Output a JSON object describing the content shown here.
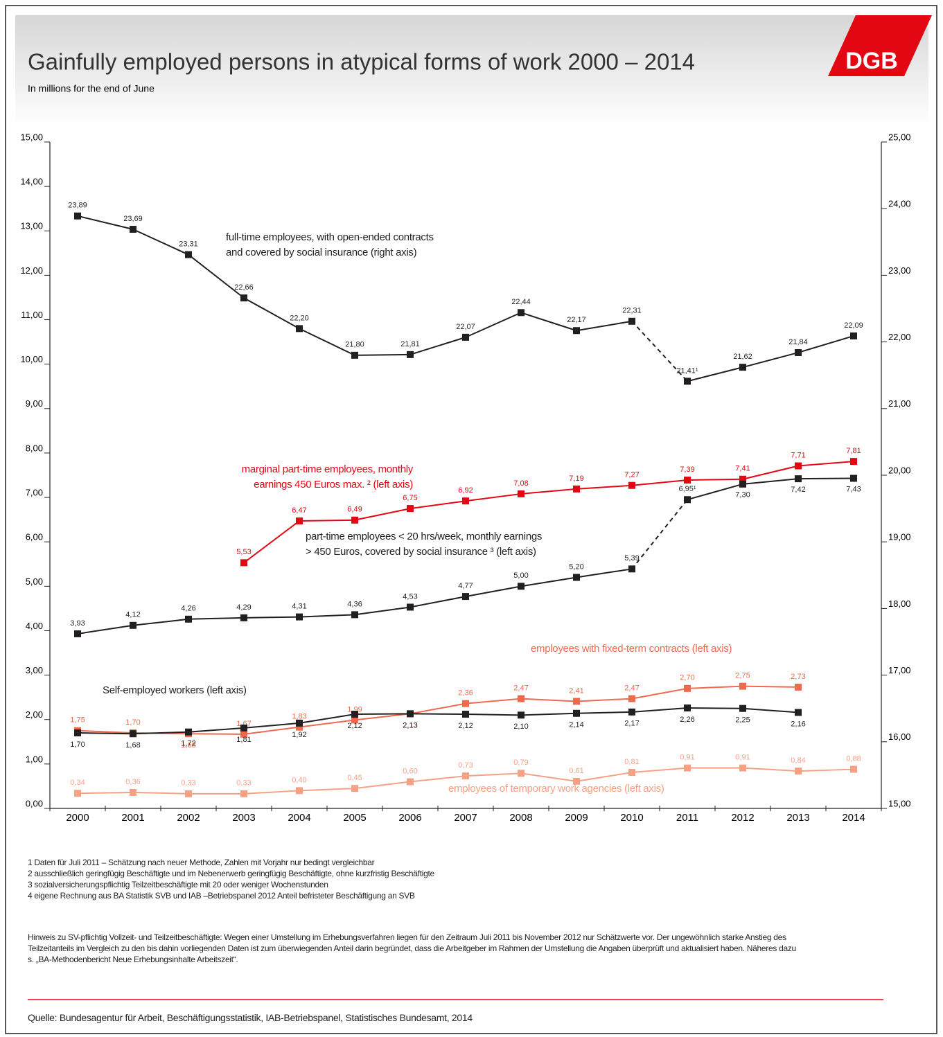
{
  "chart_data": {
    "type": "line",
    "title": "Gainfully employed persons in atypical forms of work 2000 – 2014",
    "subtitle": "In millions for the end of June",
    "categories": [
      "2000",
      "2001",
      "2002",
      "2003",
      "2004",
      "2005",
      "2006",
      "2007",
      "2008",
      "2009",
      "2010",
      "2011",
      "2012",
      "2013",
      "2014"
    ],
    "ylim": [
      0,
      15
    ],
    "yticks": [
      {
        "value": 0,
        "label": "0,00"
      },
      {
        "value": 1,
        "label": "1,00"
      },
      {
        "value": 2,
        "label": "2,00"
      },
      {
        "value": 3,
        "label": "3,00"
      },
      {
        "value": 4,
        "label": "4,00"
      },
      {
        "value": 5,
        "label": "5,00"
      },
      {
        "value": 6,
        "label": "6,00"
      },
      {
        "value": 7,
        "label": "7,00"
      },
      {
        "value": 8,
        "label": "8,00"
      },
      {
        "value": 9,
        "label": "9,00"
      },
      {
        "value": 10,
        "label": "10,00"
      },
      {
        "value": 11,
        "label": "11,00"
      },
      {
        "value": 12,
        "label": "12,00"
      },
      {
        "value": 13,
        "label": "13,00"
      },
      {
        "value": 14,
        "label": "14,00"
      },
      {
        "value": 15,
        "label": "15,00"
      }
    ],
    "y2lim": [
      15,
      25
    ],
    "y2ticks": [
      {
        "value": 15,
        "label": "15,00"
      },
      {
        "value": 16,
        "label": "16,00"
      },
      {
        "value": 17,
        "label": "17,00"
      },
      {
        "value": 18,
        "label": "18,00"
      },
      {
        "value": 19,
        "label": "19,00"
      },
      {
        "value": 20,
        "label": "20,00"
      },
      {
        "value": 21,
        "label": "21,00"
      },
      {
        "value": 22,
        "label": "22,00"
      },
      {
        "value": 23,
        "label": "23,00"
      },
      {
        "value": 24,
        "label": "24,00"
      },
      {
        "value": 25,
        "label": "25,00"
      }
    ],
    "grid": false,
    "series": [
      {
        "name": "full-time employees, with open-ended contracts\nand covered by social insurance (right axis)",
        "color": "#231f20",
        "axis": "y2",
        "dashed_to": "2011",
        "values": [
          23.89,
          23.69,
          23.31,
          22.66,
          22.2,
          21.8,
          21.81,
          22.07,
          22.44,
          22.17,
          22.31,
          21.41,
          21.62,
          21.84,
          22.09
        ],
        "value_labels": [
          "23,89",
          "23,69",
          "23,31",
          "22,66",
          "22,20",
          "21,80",
          "21,81",
          "22,07",
          "22,44",
          "22,17",
          "22,31",
          "21,41¹",
          "21,62",
          "21,84",
          "22,09"
        ]
      },
      {
        "name": "marginal part-time employees, monthly\nearnings 450 Euros max. ² (left axis)",
        "color": "#e30613",
        "values": [
          null,
          null,
          null,
          5.53,
          6.47,
          6.49,
          6.75,
          6.92,
          7.08,
          7.19,
          7.27,
          7.39,
          7.41,
          7.71,
          7.81
        ],
        "value_labels": [
          null,
          null,
          null,
          "5,53",
          "6,47",
          "6,49",
          "6,75",
          "6,92",
          "7,08",
          "7,19",
          "7,27",
          "7,39",
          "7,41",
          "7,71",
          "7,81"
        ]
      },
      {
        "name": "part-time employees < 20 hrs/week, monthly earnings\n> 450 Euros, covered by social insurance ³  (left axis)",
        "color": "#231f20",
        "dashed_to": "2011",
        "values": [
          3.93,
          4.12,
          4.26,
          4.29,
          4.31,
          4.36,
          4.53,
          4.77,
          5.0,
          5.2,
          5.39,
          6.95,
          7.3,
          7.42,
          7.43
        ],
        "value_labels": [
          "3,93",
          "4,12",
          "4,26",
          "4,29",
          "4,31",
          "4,36",
          "4,53",
          "4,77",
          "5,00",
          "5,20",
          "5,39",
          "6,95¹",
          "7,30",
          "7,42",
          "7,43"
        ]
      },
      {
        "name": "employees with fixed-term contracts (left axis)",
        "color": "#ee6a4e",
        "values": [
          1.75,
          1.7,
          1.68,
          1.67,
          1.83,
          1.99,
          2.13,
          2.36,
          2.47,
          2.41,
          2.47,
          2.7,
          2.75,
          2.73,
          null
        ],
        "value_labels": [
          "1,75",
          "1,70",
          "1,68",
          "1,67",
          "1,83",
          "1,99",
          "2,13",
          "2,36",
          "2,47",
          "2,41",
          "2,47",
          "2,70",
          "2,75",
          "2,73",
          null
        ]
      },
      {
        "name": "Self-employed workers (left axis)",
        "color": "#231f20",
        "values": [
          1.7,
          1.68,
          1.72,
          1.81,
          1.92,
          2.12,
          2.13,
          2.12,
          2.1,
          2.14,
          2.17,
          2.26,
          2.25,
          2.16,
          null
        ],
        "value_labels": [
          "1,70",
          "1,68",
          "1,72",
          "1,81",
          "1,92",
          "2,12",
          "2,13",
          "2,12",
          "2,10",
          "2,14",
          "2,17",
          "2,26",
          "2,25",
          "2,16",
          null
        ]
      },
      {
        "name": "employees of temporary work agencies (left axis)",
        "color": "#f5a185",
        "values": [
          0.34,
          0.36,
          0.33,
          0.33,
          0.4,
          0.45,
          0.6,
          0.73,
          0.79,
          0.61,
          0.81,
          0.91,
          0.91,
          0.84,
          0.88
        ],
        "value_labels": [
          "0,34",
          "0,36",
          "0,33",
          "0,33",
          "0,40",
          "0,45",
          "0,60",
          "0,73",
          "0,79",
          "0,61",
          "0,81",
          "0,91",
          "0,91",
          "0,84",
          "0,88"
        ]
      }
    ]
  },
  "logo": "DGB",
  "footnotes": [
    "1 Daten für Juli 2011 – Schätzung nach neuer Methode, Zahlen mit Vorjahr nur bedingt vergleichbar",
    "2 ausschließlich geringfügig Beschäftigte und im Nebenerwerb geringfügig Beschäftigte, ohne kurzfristig Beschäftigte",
    "3 sozialversicherungspflichtig Teilzeitbeschäftigte mit 20 oder weniger Wochenstunden",
    "4 eigene Rechnung aus BA Statistik SVB und IAB –Betriebspanel 2012 Anteil befristeter Beschäftigung an SVB"
  ],
  "note": "Hinweis zu SV-pflichtig Vollzeit- und Teilzeitbeschäftigte: Wegen einer Umstellung im Erhebungsverfahren liegen für den Zeitraum Juli 2011 bis November 2012 nur Schätzwerte vor. Der ungewöhnlich starke Anstieg des Teilzeitanteils im Vergleich zu den bis dahin vorliegenden Daten ist zum überwiegenden Anteil darin begründet, dass die Arbeitgeber im Rahmen der Umstellung die Angaben überprüft und aktualisiert haben. Näheres dazu s. „BA-Methodenbericht Neue Erhebungsinhalte Arbeitszeit“.",
  "source": "Quelle: Bundesagentur für Arbeit, Beschäftigungsstatistik, IAB-Betriebspanel, Statistisches Bundesamt, 2014"
}
